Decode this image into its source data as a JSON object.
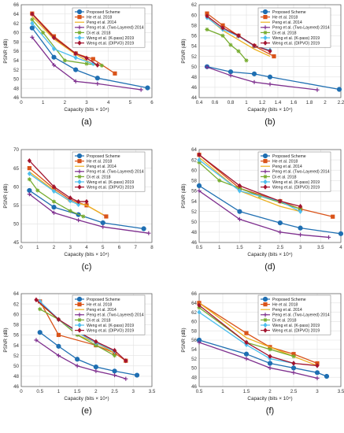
{
  "figure": {
    "legend_entries": [
      {
        "name": "Proposed Scheme",
        "color": "#1f6fb2",
        "marker": "circle"
      },
      {
        "name": "He et al. 2018",
        "color": "#d95319",
        "marker": "square"
      },
      {
        "name": "Peng et al. 2014",
        "color": "#edb120",
        "marker": "none"
      },
      {
        "name": "Peng et al. (Two-Layered) 2014",
        "color": "#7e2f8e",
        "marker": "plus"
      },
      {
        "name": "Di et al. 2018",
        "color": "#77ac30",
        "marker": "star"
      },
      {
        "name": "Weng et al. (K-pass) 2019",
        "color": "#4dbeee",
        "marker": "diamond"
      },
      {
        "name": "Weng et.al. (DIPVO) 2019",
        "color": "#a2142f",
        "marker": "diamond"
      }
    ]
  },
  "chart_data": [
    {
      "type": "line",
      "panel_label": "(a)",
      "xlabel": "Capacity (bits × 10⁴)",
      "ylabel": "PSNR (dB)",
      "xlim": [
        0,
        6
      ],
      "ylim": [
        46,
        66
      ],
      "xticks": [
        "0",
        "1",
        "2",
        "3",
        "4",
        "5",
        "6"
      ],
      "yticks": [
        "46",
        "48",
        "50",
        "52",
        "54",
        "56",
        "58",
        "60",
        "62",
        "64",
        "66"
      ],
      "series": [
        {
          "name": "Proposed Scheme",
          "x": [
            0.5,
            1.5,
            2.5,
            3.5,
            5.8
          ],
          "y": [
            61.0,
            54.7,
            52.0,
            50.2,
            48.1
          ]
        },
        {
          "name": "He et al. 2018",
          "x": [
            0.5,
            1.5,
            2.5,
            3.3,
            4.3
          ],
          "y": [
            64.1,
            59.2,
            55.5,
            54.3,
            51.2
          ]
        },
        {
          "name": "Peng et al. 2014",
          "x": [
            0.5,
            1.5,
            2.5,
            3.3
          ],
          "y": [
            63.5,
            58.6,
            55.3,
            53.2
          ]
        },
        {
          "name": "Peng et al. (Two-Layered) 2014",
          "x": [
            0.5,
            1.5,
            2.5,
            3.5,
            5.5
          ],
          "y": [
            59.0,
            53.0,
            49.5,
            49.0,
            47.7
          ]
        },
        {
          "name": "Di et al. 2018",
          "x": [
            0.5,
            1.0,
            2.0,
            3.0,
            3.7
          ],
          "y": [
            62.8,
            60.0,
            54.0,
            53.3,
            52.9
          ]
        },
        {
          "name": "Weng et al. (K-pass) 2019",
          "x": [
            0.5,
            1.5,
            2.5,
            3.3
          ],
          "y": [
            62.0,
            56.5,
            54.6,
            53.3
          ]
        },
        {
          "name": "Weng et.al. (DIPVO) 2019",
          "x": [
            0.5,
            1.5,
            2.5,
            3.0,
            3.5
          ],
          "y": [
            64.0,
            58.9,
            55.5,
            54.5,
            53.0
          ]
        }
      ]
    },
    {
      "type": "line",
      "panel_label": "(b)",
      "xlabel": "Capacity (bits × 10⁴)",
      "ylabel": "PSNR (dB)",
      "xlim": [
        0.4,
        2.2
      ],
      "ylim": [
        44,
        62
      ],
      "xticks": [
        "0.4",
        "0.6",
        "0.8",
        "1",
        "1.2",
        "1.4",
        "1.6",
        "1.8",
        "2",
        "2.2"
      ],
      "yticks": [
        "44",
        "46",
        "48",
        "50",
        "52",
        "54",
        "56",
        "58",
        "60",
        "62"
      ],
      "series": [
        {
          "name": "Proposed Scheme",
          "x": [
            0.5,
            0.8,
            1.1,
            1.3,
            2.18
          ],
          "y": [
            50.0,
            49.0,
            48.6,
            48.0,
            45.6
          ]
        },
        {
          "name": "He et al. 2018",
          "x": [
            0.5,
            0.7,
            0.9,
            1.1,
            1.35
          ],
          "y": [
            60.3,
            58.0,
            56.0,
            54.0,
            52.0
          ]
        },
        {
          "name": "Peng et al. 2014",
          "x": [
            0.5,
            0.7,
            0.9,
            1.1,
            1.3
          ],
          "y": [
            59.6,
            57.0,
            55.2,
            53.4,
            52.0
          ]
        },
        {
          "name": "Peng et al. (Two-Layered) 2014",
          "x": [
            0.5,
            0.8,
            1.1,
            1.3,
            1.9
          ],
          "y": [
            49.9,
            48.3,
            47.0,
            46.6,
            45.5
          ]
        },
        {
          "name": "Di et al. 2018",
          "x": [
            0.5,
            0.7,
            0.8,
            0.9,
            1.0
          ],
          "y": [
            57.2,
            56.0,
            54.2,
            53.0,
            51.2
          ]
        },
        {
          "name": "Weng et al. (K-pass) 2019",
          "x": [
            0.5,
            0.7,
            0.9,
            1.1,
            1.3
          ],
          "y": [
            59.5,
            57.2,
            55.9,
            54.0,
            53.2
          ]
        },
        {
          "name": "Weng et.al. (DIPVO) 2019",
          "x": [
            0.5,
            0.7,
            0.9,
            1.1,
            1.3
          ],
          "y": [
            59.8,
            57.5,
            56.0,
            54.1,
            53.0
          ]
        }
      ]
    },
    {
      "type": "line",
      "panel_label": "(c)",
      "xlabel": "Capacity (bits × 10⁴)",
      "ylabel": "PSNR (dB)",
      "xlim": [
        0,
        8
      ],
      "ylim": [
        45,
        70
      ],
      "xticks": [
        "0",
        "1",
        "2",
        "3",
        "4",
        "5",
        "6",
        "7",
        "8"
      ],
      "yticks": [
        "45",
        "50",
        "55",
        "60",
        "65",
        "70"
      ],
      "series": [
        {
          "name": "Proposed Scheme",
          "x": [
            0.5,
            2.0,
            3.5,
            5.0,
            7.5
          ],
          "y": [
            59.0,
            54.5,
            52.5,
            50.3,
            48.7
          ]
        },
        {
          "name": "He et al. 2018",
          "x": [
            0.5,
            2.0,
            3.0,
            4.0,
            5.2
          ],
          "y": [
            65.0,
            59.5,
            56.5,
            55.0,
            52.0
          ]
        },
        {
          "name": "Peng et al. 2014",
          "x": [
            0.5,
            2.0,
            3.0,
            4.0,
            5.0
          ],
          "y": [
            64.0,
            59.0,
            56.0,
            55.0,
            52.5
          ]
        },
        {
          "name": "Peng et al. (Two-Layered) 2014",
          "x": [
            0.5,
            2.0,
            3.5,
            5.0,
            7.8
          ],
          "y": [
            58.0,
            53.0,
            51.0,
            49.2,
            47.5
          ]
        },
        {
          "name": "Di et al. 2018",
          "x": [
            0.5,
            1.0,
            2.0,
            3.0,
            3.8
          ],
          "y": [
            62.0,
            59.0,
            56.0,
            53.5,
            52.0
          ]
        },
        {
          "name": "Weng et al. (K-pass) 2019",
          "x": [
            0.5,
            2.0,
            3.0,
            3.5
          ],
          "y": [
            63.5,
            58.8,
            56.2,
            55.2
          ]
        },
        {
          "name": "Weng et.al. (DIPVO) 2019",
          "x": [
            0.5,
            2.0,
            3.0,
            3.5,
            4.0
          ],
          "y": [
            67.0,
            60.0,
            57.0,
            56.0,
            56.0
          ]
        }
      ]
    },
    {
      "type": "line",
      "panel_label": "(d)",
      "xlabel": "Capacity (bits × 10⁴)",
      "ylabel": "PSNR (dB)",
      "xlim": [
        0.5,
        4
      ],
      "ylim": [
        46,
        64
      ],
      "xticks": [
        "0.5",
        "1",
        "1.5",
        "2",
        "2.5",
        "3",
        "3.5",
        "4"
      ],
      "yticks": [
        "46",
        "48",
        "50",
        "52",
        "54",
        "56",
        "58",
        "60",
        "62",
        "64"
      ],
      "series": [
        {
          "name": "Proposed Scheme",
          "x": [
            0.5,
            1.5,
            2.5,
            3.0,
            4.0
          ],
          "y": [
            57.0,
            52.0,
            49.8,
            48.8,
            47.7
          ]
        },
        {
          "name": "He et al. 2018",
          "x": [
            0.5,
            1.5,
            2.5,
            3.0,
            3.8
          ],
          "y": [
            63.0,
            56.5,
            54.0,
            52.5,
            51.0
          ]
        },
        {
          "name": "Peng et al. 2014",
          "x": [
            0.5,
            1.5,
            2.5,
            3.0
          ],
          "y": [
            62.5,
            56.0,
            53.0,
            52.0
          ]
        },
        {
          "name": "Peng et al. (Two-Layered) 2014",
          "x": [
            0.5,
            1.5,
            2.5,
            3.0,
            3.7
          ],
          "y": [
            56.0,
            50.5,
            48.0,
            47.5,
            47.0
          ]
        },
        {
          "name": "Di et al. 2018",
          "x": [
            0.5,
            1.0,
            1.5,
            2.0,
            3.0
          ],
          "y": [
            61.5,
            58.0,
            56.5,
            55.0,
            52.5
          ]
        },
        {
          "name": "Weng et al. (K-pass) 2019",
          "x": [
            0.5,
            1.5,
            2.5,
            3.0
          ],
          "y": [
            62.0,
            56.0,
            54.0,
            52.0
          ]
        },
        {
          "name": "Weng et.al. (DIPVO) 2019",
          "x": [
            0.5,
            1.5,
            2.5,
            3.0
          ],
          "y": [
            63.0,
            57.0,
            54.0,
            53.0
          ]
        }
      ]
    },
    {
      "type": "line",
      "panel_label": "(e)",
      "xlabel": "Capacity (bits × 10⁴)",
      "ylabel": "PSNR (dB)",
      "xlim": [
        0,
        3.5
      ],
      "ylim": [
        46,
        64
      ],
      "xticks": [
        "0",
        "0.5",
        "1",
        "1.5",
        "2",
        "2.5",
        "3",
        "3.5"
      ],
      "yticks": [
        "46",
        "48",
        "50",
        "52",
        "54",
        "56",
        "58",
        "60",
        "62",
        "64"
      ],
      "series": [
        {
          "name": "Proposed Scheme",
          "x": [
            0.5,
            1.0,
            1.5,
            2.0,
            2.5,
            3.1
          ],
          "y": [
            56.5,
            53.8,
            51.3,
            49.8,
            49.0,
            48.2
          ]
        },
        {
          "name": "He et al. 2018",
          "x": [
            0.5,
            1.0,
            2.0,
            2.5,
            2.8
          ],
          "y": [
            62.5,
            56.0,
            54.0,
            52.5,
            51.0
          ]
        },
        {
          "name": "Peng et al. 2014",
          "x": [
            0.5,
            1.0,
            1.5,
            2.0,
            2.5
          ],
          "y": [
            62.0,
            59.0,
            56.0,
            54.5,
            52.5
          ]
        },
        {
          "name": "Peng et al. (Two-Layered) 2014",
          "x": [
            0.4,
            1.0,
            1.5,
            2.0,
            2.5,
            2.8
          ],
          "y": [
            55.0,
            52.0,
            50.0,
            49.0,
            48.2,
            47.5
          ]
        },
        {
          "name": "Di et al. 2018",
          "x": [
            0.5,
            1.0,
            1.5,
            2.0,
            2.5
          ],
          "y": [
            61.0,
            59.0,
            56.0,
            54.0,
            52.0
          ]
        },
        {
          "name": "Weng et al. (K-pass) 2019",
          "x": [
            0.5,
            1.0,
            1.5,
            2.0,
            2.5
          ],
          "y": [
            62.5,
            59.0,
            56.5,
            54.5,
            52.8
          ]
        },
        {
          "name": "Weng et.al. (DIPVO) 2019",
          "x": [
            0.4,
            1.0,
            1.5,
            2.0,
            2.5,
            2.8
          ],
          "y": [
            62.8,
            59.0,
            56.7,
            54.7,
            53.0,
            51.0
          ]
        }
      ]
    },
    {
      "type": "line",
      "panel_label": "(f)",
      "xlabel": "Capacity (bits × 10⁴)",
      "ylabel": "PSNR (dB)",
      "xlim": [
        0.5,
        3.5
      ],
      "ylim": [
        46,
        66
      ],
      "xticks": [
        "0.5",
        "1",
        "1.5",
        "2",
        "2.5",
        "3",
        "3.5"
      ],
      "yticks": [
        "46",
        "48",
        "50",
        "52",
        "54",
        "56",
        "58",
        "60",
        "62",
        "64",
        "66"
      ],
      "series": [
        {
          "name": "Proposed Scheme",
          "x": [
            0.5,
            1.5,
            2.0,
            2.5,
            3.0,
            3.2
          ],
          "y": [
            56.0,
            53.0,
            51.0,
            50.0,
            49.0,
            48.2
          ]
        },
        {
          "name": "He et al. 2018",
          "x": [
            0.5,
            1.5,
            2.0,
            2.5,
            3.0
          ],
          "y": [
            64.0,
            57.5,
            54.5,
            53.0,
            51.0
          ]
        },
        {
          "name": "Peng et al. 2014",
          "x": [
            0.5,
            1.5,
            2.0,
            2.5,
            3.0
          ],
          "y": [
            64.0,
            56.5,
            54.5,
            52.5,
            50.5
          ]
        },
        {
          "name": "Peng et al. (Two-Layered) 2014",
          "x": [
            0.5,
            1.5,
            2.0,
            2.5,
            3.0
          ],
          "y": [
            55.5,
            52.0,
            50.0,
            49.0,
            47.8
          ]
        },
        {
          "name": "Di et al. 2018",
          "x": [
            0.5,
            1.5,
            2.0,
            2.5
          ],
          "y": [
            63.0,
            55.5,
            54.0,
            52.5
          ]
        },
        {
          "name": "Weng et al. (K-pass) 2019",
          "x": [
            0.5,
            1.5,
            2.0,
            2.5
          ],
          "y": [
            62.0,
            55.0,
            52.0,
            51.0
          ]
        },
        {
          "name": "Weng et.al. (DIPVO) 2019",
          "x": [
            0.5,
            1.5,
            2.0,
            2.5,
            3.0
          ],
          "y": [
            63.5,
            55.5,
            52.5,
            51.0,
            50.5
          ]
        }
      ]
    }
  ]
}
